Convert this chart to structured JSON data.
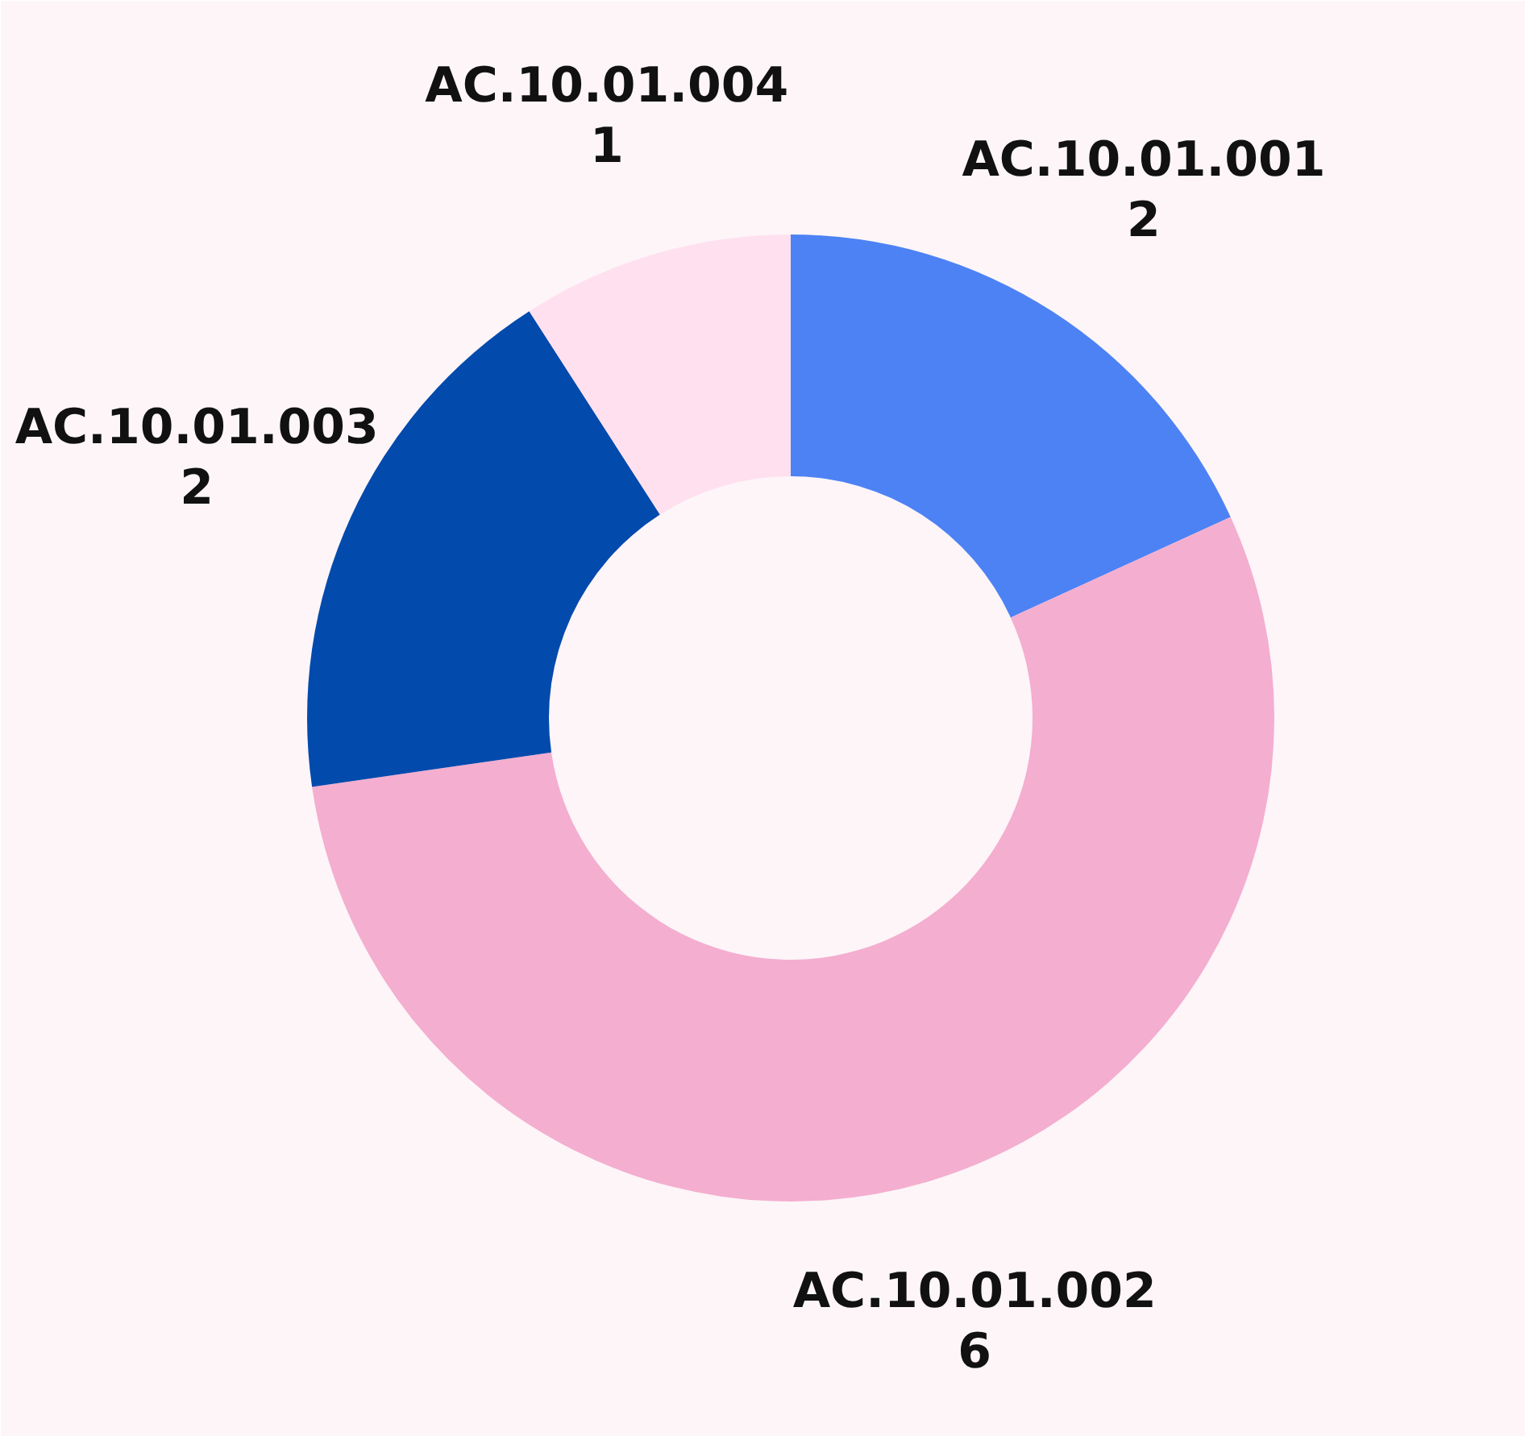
{
  "chart_data": {
    "type": "donut",
    "categories": [
      "AC.10.01.001",
      "AC.10.01.002",
      "AC.10.01.003",
      "AC.10.01.004"
    ],
    "values": [
      2,
      6,
      2,
      1
    ],
    "colors": [
      "#4d82f5",
      "#f4aecf",
      "#034aad",
      "#ffe0ef"
    ],
    "data_labels": true
  }
}
